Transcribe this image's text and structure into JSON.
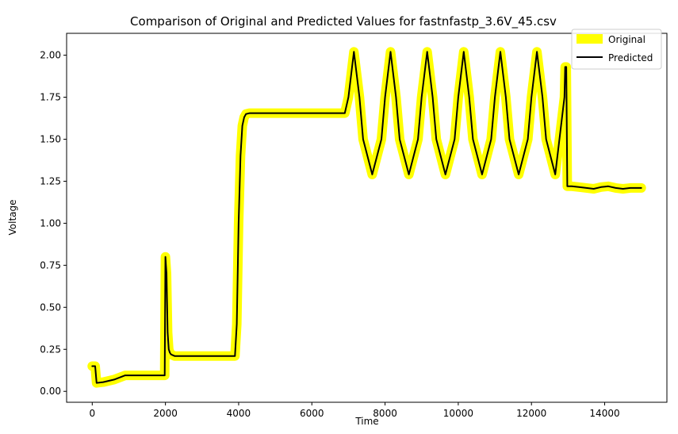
{
  "chart_data": {
    "type": "line",
    "title": "Comparison of Original and Predicted Values for fastnfastp_3.6V_45.csv",
    "xlabel": "Time",
    "ylabel": "Voltage",
    "xlim": [
      -700,
      15700
    ],
    "ylim": [
      -0.065,
      2.13
    ],
    "x_ticks": [
      0,
      2000,
      4000,
      6000,
      8000,
      10000,
      12000,
      14000
    ],
    "y_ticks": [
      0.0,
      0.25,
      0.5,
      0.75,
      1.0,
      1.25,
      1.5,
      1.75,
      2.0
    ],
    "y_tick_labels": [
      "0.00",
      "0.25",
      "0.50",
      "0.75",
      "1.00",
      "1.25",
      "1.50",
      "1.75",
      "2.00"
    ],
    "grid": false,
    "legend_position": "top-right",
    "series": [
      {
        "name": "Original",
        "color": "#ffff00",
        "style": "thick",
        "x": [
          0,
          80,
          120,
          300,
          600,
          900,
          1200,
          1500,
          1800,
          1980,
          2000,
          2030,
          2060,
          2090,
          2120,
          2150,
          2200,
          2250,
          2300,
          2400,
          2600,
          3000,
          3400,
          3800,
          3900,
          3950,
          4000,
          4050,
          4100,
          4150,
          4200,
          4300,
          4500,
          5000,
          5500,
          6000,
          6500,
          6900,
          7000,
          7150,
          7300,
          7400,
          7650,
          7900,
          8000,
          8150,
          8300,
          8400,
          8650,
          8900,
          9000,
          9150,
          9300,
          9400,
          9650,
          9900,
          10000,
          10150,
          10300,
          10400,
          10650,
          10900,
          11000,
          11150,
          11300,
          11400,
          11650,
          11900,
          12000,
          12150,
          12300,
          12400,
          12650,
          12900,
          12920,
          12950,
          12980,
          13100,
          13300,
          13500,
          13700,
          13900,
          14100,
          14300,
          14500,
          14700,
          14900,
          15000
        ],
        "y": [
          0.15,
          0.15,
          0.05,
          0.055,
          0.07,
          0.095,
          0.095,
          0.095,
          0.095,
          0.095,
          0.8,
          0.7,
          0.35,
          0.25,
          0.23,
          0.22,
          0.215,
          0.21,
          0.21,
          0.21,
          0.21,
          0.21,
          0.21,
          0.21,
          0.21,
          0.4,
          1.0,
          1.4,
          1.58,
          1.63,
          1.65,
          1.655,
          1.655,
          1.655,
          1.655,
          1.655,
          1.655,
          1.655,
          1.75,
          2.02,
          1.75,
          1.5,
          1.29,
          1.5,
          1.75,
          2.02,
          1.75,
          1.5,
          1.29,
          1.5,
          1.75,
          2.02,
          1.75,
          1.5,
          1.29,
          1.5,
          1.75,
          2.02,
          1.75,
          1.5,
          1.29,
          1.5,
          1.75,
          2.02,
          1.75,
          1.5,
          1.29,
          1.5,
          1.75,
          2.02,
          1.75,
          1.5,
          1.29,
          1.75,
          1.93,
          1.93,
          1.22,
          1.22,
          1.215,
          1.21,
          1.205,
          1.215,
          1.22,
          1.21,
          1.205,
          1.21,
          1.21,
          1.21
        ]
      },
      {
        "name": "Predicted",
        "color": "#000000",
        "style": "thin",
        "x": [
          0,
          80,
          120,
          300,
          600,
          900,
          1200,
          1500,
          1800,
          1980,
          2000,
          2030,
          2060,
          2090,
          2120,
          2150,
          2200,
          2250,
          2300,
          2400,
          2600,
          3000,
          3400,
          3800,
          3900,
          3950,
          4000,
          4050,
          4100,
          4150,
          4200,
          4300,
          4500,
          5000,
          5500,
          6000,
          6500,
          6900,
          7000,
          7150,
          7300,
          7400,
          7650,
          7900,
          8000,
          8150,
          8300,
          8400,
          8650,
          8900,
          9000,
          9150,
          9300,
          9400,
          9650,
          9900,
          10000,
          10150,
          10300,
          10400,
          10650,
          10900,
          11000,
          11150,
          11300,
          11400,
          11650,
          11900,
          12000,
          12150,
          12300,
          12400,
          12650,
          12900,
          12920,
          12950,
          12980,
          13100,
          13300,
          13500,
          13700,
          13900,
          14100,
          14300,
          14500,
          14700,
          14900,
          15000
        ],
        "y": [
          0.15,
          0.15,
          0.05,
          0.055,
          0.07,
          0.095,
          0.095,
          0.095,
          0.095,
          0.095,
          0.8,
          0.7,
          0.35,
          0.25,
          0.23,
          0.22,
          0.215,
          0.21,
          0.21,
          0.21,
          0.21,
          0.21,
          0.21,
          0.21,
          0.21,
          0.4,
          1.0,
          1.4,
          1.58,
          1.63,
          1.65,
          1.655,
          1.655,
          1.655,
          1.655,
          1.655,
          1.655,
          1.655,
          1.75,
          2.02,
          1.75,
          1.5,
          1.29,
          1.5,
          1.75,
          2.02,
          1.75,
          1.5,
          1.29,
          1.5,
          1.75,
          2.02,
          1.75,
          1.5,
          1.29,
          1.5,
          1.75,
          2.02,
          1.75,
          1.5,
          1.29,
          1.5,
          1.75,
          2.02,
          1.75,
          1.5,
          1.29,
          1.5,
          1.75,
          2.02,
          1.75,
          1.5,
          1.29,
          1.75,
          1.93,
          1.93,
          1.22,
          1.22,
          1.215,
          1.21,
          1.205,
          1.215,
          1.22,
          1.21,
          1.205,
          1.21,
          1.21,
          1.21
        ]
      }
    ]
  }
}
